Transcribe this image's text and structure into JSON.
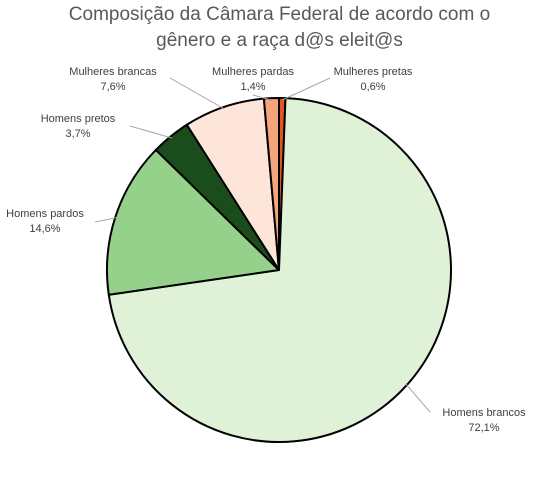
{
  "chart_data": {
    "type": "pie",
    "title_lines": [
      "Composição da Câmara Federal de acordo com o",
      "gênero e a raça d@s eleit@s"
    ],
    "slices": [
      {
        "label": "Mulheres pretas",
        "value": 0.6,
        "value_label": "0,6%",
        "color": "#e2561f"
      },
      {
        "label": "Homens brancos",
        "value": 72.1,
        "value_label": "72,1%",
        "color": "#dff2d8"
      },
      {
        "label": "Homens pardos",
        "value": 14.6,
        "value_label": "14,6%",
        "color": "#95d18b"
      },
      {
        "label": "Homens pretos",
        "value": 3.7,
        "value_label": "3,7%",
        "color": "#1b4d1c"
      },
      {
        "label": "Mulheres brancas",
        "value": 7.6,
        "value_label": "7,6%",
        "color": "#fde5d9"
      },
      {
        "label": "Mulheres pardas",
        "value": 1.4,
        "value_label": "1,4%",
        "color": "#f4a57c"
      }
    ],
    "start_angle_deg": 0,
    "direction": "clockwise",
    "legend": "none",
    "data_labels": "outside with leader lines"
  }
}
